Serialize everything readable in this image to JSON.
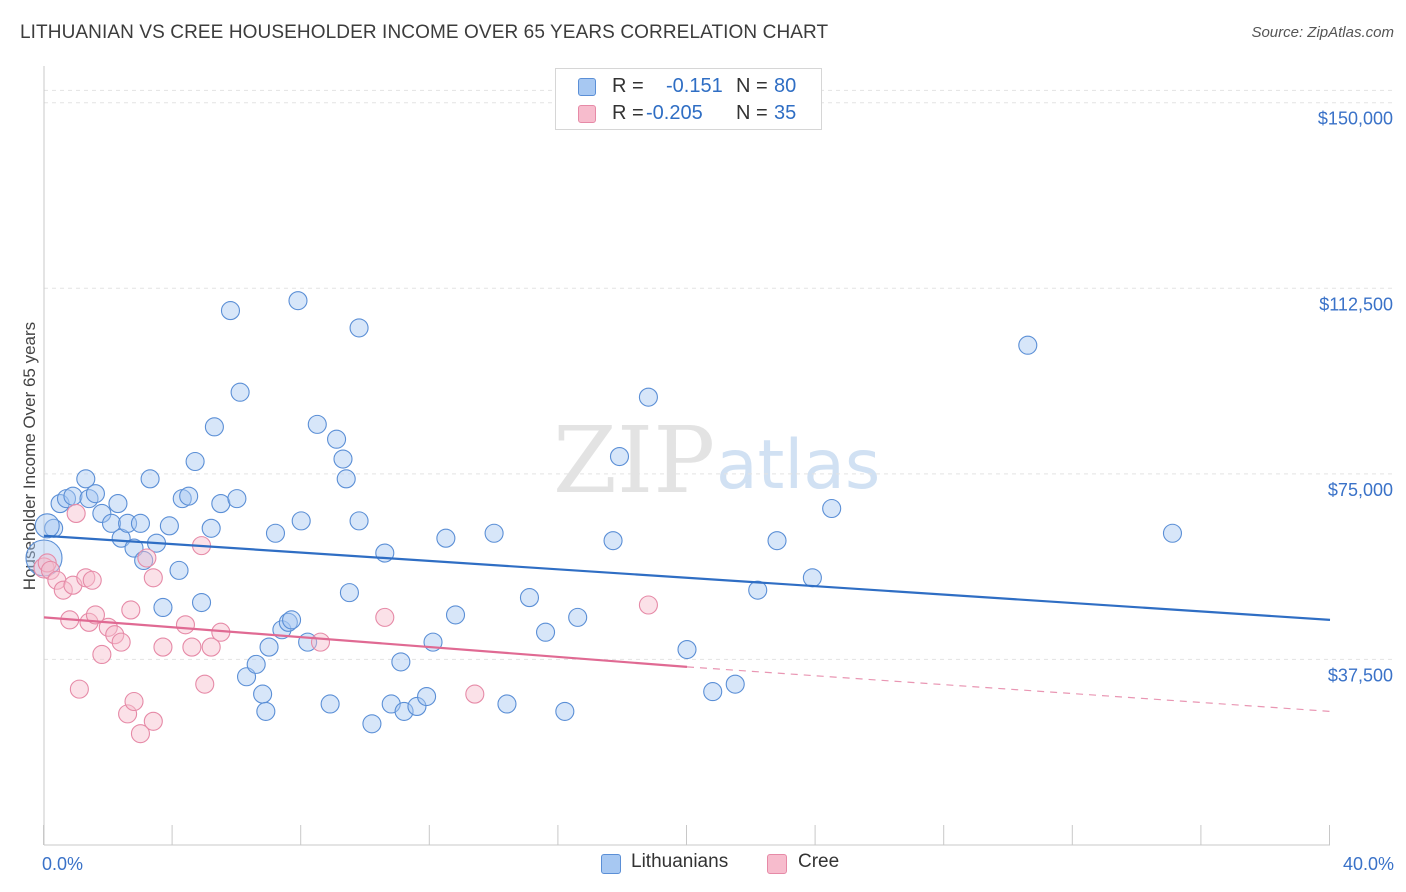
{
  "title": "LITHUANIAN VS CREE HOUSEHOLDER INCOME OVER 65 YEARS CORRELATION CHART",
  "source": "Source: ZipAtlas.com",
  "watermark": {
    "zip": "ZIP",
    "atlas": "atlas"
  },
  "legend": {
    "rows": [
      {
        "r_label": "R =",
        "r_value": "-0.151",
        "n_label": "N =",
        "n_value": "80",
        "color": "#a7c8f2",
        "stroke": "#5b8fd6"
      },
      {
        "r_label": "R =",
        "r_value": "-0.205",
        "n_label": "N =",
        "n_value": "35",
        "color": "#f7bccd",
        "stroke": "#e68aa7"
      }
    ]
  },
  "bottom_legend": [
    {
      "label": "Lithuanians",
      "color": "#a7c8f2",
      "stroke": "#5b8fd6"
    },
    {
      "label": "Cree",
      "color": "#f7bccd",
      "stroke": "#e68aa7"
    }
  ],
  "chart_data": {
    "type": "scatter",
    "title": "LITHUANIAN VS CREE HOUSEHOLDER INCOME OVER 65 YEARS CORRELATION CHART",
    "xlabel": "",
    "ylabel": "Householder Income Over 65 years",
    "xlim": [
      0,
      40
    ],
    "ylim": [
      0,
      155000
    ],
    "x_tick_labels": [
      "0.0%",
      "40.0%"
    ],
    "y_ticks": [
      37500,
      75000,
      112500,
      150000
    ],
    "y_tick_labels": [
      "$37,500",
      "$75,000",
      "$112,500",
      "$150,000"
    ],
    "grid": true,
    "series": [
      {
        "name": "Lithuanians",
        "color": "#5b8fd6",
        "fill": "#a7c8f2",
        "trend": {
          "x0": 0,
          "y0": 62500,
          "x1": 40,
          "y1": 45500,
          "style": "solid",
          "color": "#2f6ec4"
        },
        "points": [
          [
            0.3,
            64000
          ],
          [
            0.5,
            69000
          ],
          [
            0.7,
            70000
          ],
          [
            0.9,
            70500
          ],
          [
            1.3,
            74000
          ],
          [
            1.4,
            70000
          ],
          [
            1.6,
            71000
          ],
          [
            1.8,
            67000
          ],
          [
            2.1,
            65000
          ],
          [
            2.3,
            69000
          ],
          [
            2.4,
            62000
          ],
          [
            2.6,
            65000
          ],
          [
            2.8,
            60000
          ],
          [
            3.0,
            65000
          ],
          [
            3.1,
            57500
          ],
          [
            3.3,
            74000
          ],
          [
            3.5,
            61000
          ],
          [
            3.7,
            48000
          ],
          [
            3.9,
            64500
          ],
          [
            4.2,
            55500
          ],
          [
            4.3,
            70000
          ],
          [
            4.5,
            70500
          ],
          [
            4.7,
            77500
          ],
          [
            4.9,
            49000
          ],
          [
            5.2,
            64000
          ],
          [
            5.3,
            84500
          ],
          [
            5.5,
            69000
          ],
          [
            5.8,
            108000
          ],
          [
            6.0,
            70000
          ],
          [
            6.1,
            91500
          ],
          [
            6.3,
            34000
          ],
          [
            6.6,
            36500
          ],
          [
            6.8,
            30500
          ],
          [
            6.9,
            27000
          ],
          [
            7.0,
            40000
          ],
          [
            7.2,
            63000
          ],
          [
            7.4,
            43500
          ],
          [
            7.6,
            45000
          ],
          [
            7.7,
            45500
          ],
          [
            7.9,
            110000
          ],
          [
            8.0,
            65500
          ],
          [
            8.2,
            41000
          ],
          [
            8.5,
            85000
          ],
          [
            8.9,
            28500
          ],
          [
            9.1,
            82000
          ],
          [
            9.3,
            78000
          ],
          [
            9.4,
            74000
          ],
          [
            9.5,
            51000
          ],
          [
            9.8,
            65500
          ],
          [
            9.8,
            104500
          ],
          [
            10.2,
            24500
          ],
          [
            10.6,
            59000
          ],
          [
            10.8,
            28500
          ],
          [
            11.1,
            37000
          ],
          [
            11.2,
            27000
          ],
          [
            11.6,
            28000
          ],
          [
            11.9,
            30000
          ],
          [
            12.1,
            41000
          ],
          [
            12.5,
            62000
          ],
          [
            12.8,
            46500
          ],
          [
            14.0,
            63000
          ],
          [
            14.4,
            28500
          ],
          [
            15.1,
            50000
          ],
          [
            15.6,
            43000
          ],
          [
            16.2,
            27000
          ],
          [
            16.6,
            46000
          ],
          [
            17.7,
            61500
          ],
          [
            17.9,
            78500
          ],
          [
            18.8,
            90500
          ],
          [
            20.0,
            39500
          ],
          [
            20.8,
            31000
          ],
          [
            21.5,
            32500
          ],
          [
            22.2,
            51500
          ],
          [
            22.8,
            61500
          ],
          [
            23.9,
            54000
          ],
          [
            24.5,
            68000
          ],
          [
            30.6,
            101000
          ],
          [
            35.1,
            63000
          ],
          [
            0.1,
            64500
          ],
          [
            0.0,
            58000
          ]
        ]
      },
      {
        "name": "Cree",
        "color": "#e68aa7",
        "fill": "#f7bccd",
        "trend": {
          "x0": 0,
          "y0": 46000,
          "x1": 20,
          "y1": 36000,
          "dash_to": {
            "x": 40,
            "y": 27000
          },
          "style": "solid-then-dashed",
          "color": "#e06a93"
        },
        "points": [
          [
            0.0,
            56000
          ],
          [
            0.1,
            57000
          ],
          [
            0.2,
            55500
          ],
          [
            0.4,
            53500
          ],
          [
            0.6,
            51500
          ],
          [
            0.8,
            45500
          ],
          [
            0.9,
            52500
          ],
          [
            1.0,
            67000
          ],
          [
            1.1,
            31500
          ],
          [
            1.3,
            54000
          ],
          [
            1.4,
            45000
          ],
          [
            1.5,
            53500
          ],
          [
            1.6,
            46500
          ],
          [
            1.8,
            38500
          ],
          [
            2.0,
            44000
          ],
          [
            2.2,
            42500
          ],
          [
            2.4,
            41000
          ],
          [
            2.6,
            26500
          ],
          [
            2.7,
            47500
          ],
          [
            2.8,
            29000
          ],
          [
            3.0,
            22500
          ],
          [
            3.2,
            58000
          ],
          [
            3.4,
            54000
          ],
          [
            3.4,
            25000
          ],
          [
            3.7,
            40000
          ],
          [
            4.4,
            44500
          ],
          [
            4.6,
            40000
          ],
          [
            4.9,
            60500
          ],
          [
            5.0,
            32500
          ],
          [
            5.2,
            40000
          ],
          [
            5.5,
            43000
          ],
          [
            10.6,
            46000
          ],
          [
            13.4,
            30500
          ],
          [
            18.8,
            48500
          ],
          [
            8.6,
            41000
          ]
        ]
      }
    ]
  }
}
